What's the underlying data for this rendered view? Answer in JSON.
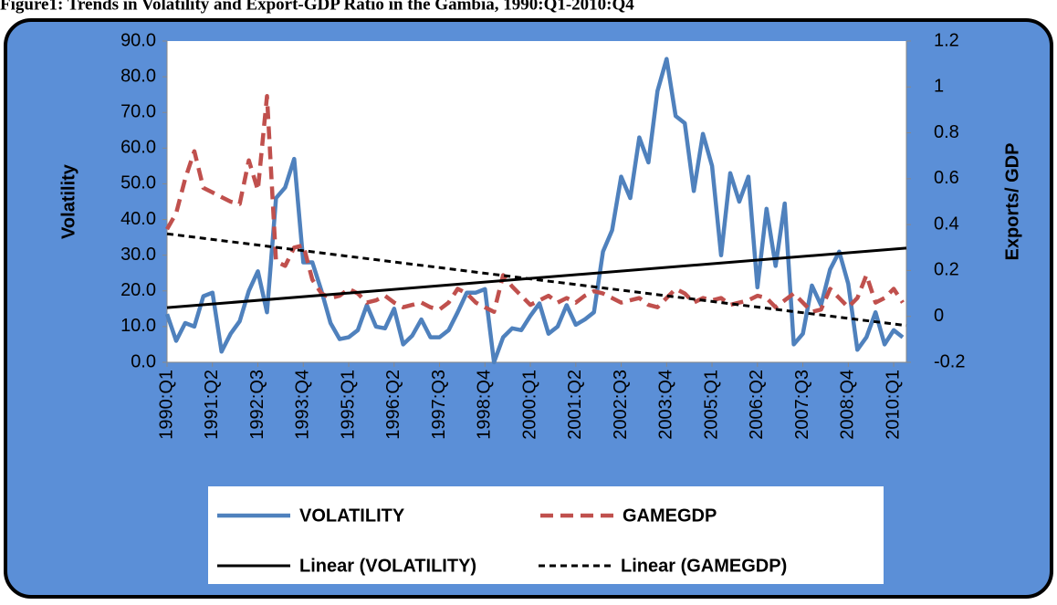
{
  "chart_data": {
    "type": "line",
    "title": "Figure1: Trends in Volatility and Export-GDP Ratio in the Gambia, 1990:Q1-2010:Q4",
    "y_label": "Volatility",
    "y2_label": "Exports/ GDP",
    "categories": [
      "1990:Q1",
      null,
      null,
      null,
      null,
      "1991:Q2",
      null,
      null,
      null,
      null,
      "1992:Q3",
      null,
      null,
      null,
      null,
      "1993:Q4",
      null,
      null,
      null,
      null,
      "1995:Q1",
      null,
      null,
      null,
      null,
      "1996:Q2",
      null,
      null,
      null,
      null,
      "1997:Q3",
      null,
      null,
      null,
      null,
      "1998:Q4",
      null,
      null,
      null,
      null,
      "2000:Q1",
      null,
      null,
      null,
      null,
      "2001:Q2",
      null,
      null,
      null,
      null,
      "2002:Q3",
      null,
      null,
      null,
      null,
      "2003:Q4",
      null,
      null,
      null,
      null,
      "2005:Q1",
      null,
      null,
      null,
      null,
      "2006:Q2",
      null,
      null,
      null,
      null,
      "2007:Q3",
      null,
      null,
      null,
      null,
      "2008:Q4",
      null,
      null,
      null,
      null,
      "2010:Q1",
      null
    ],
    "series": [
      {
        "name": "VOLATILITY",
        "color": "#4f81bd",
        "dash": false,
        "values": [
          13.5,
          6,
          11,
          10,
          18.5,
          19.5,
          3,
          8,
          11.5,
          20,
          25.5,
          14,
          46,
          49,
          57,
          28,
          28,
          20,
          11,
          6.5,
          7,
          9,
          16,
          10,
          9.5,
          15,
          5,
          7.5,
          12,
          7,
          7,
          9,
          14,
          19.5,
          19.5,
          20.5,
          0,
          7,
          9.5,
          9,
          13,
          16.5,
          8,
          10,
          16,
          10.5,
          12,
          14,
          31,
          37,
          52,
          46,
          63,
          56,
          76,
          85,
          69,
          67,
          48,
          64,
          55,
          30,
          53,
          45,
          52,
          21,
          43,
          27,
          44.5,
          5,
          8,
          21.5,
          16,
          26,
          31,
          22,
          3.5,
          7,
          14,
          5,
          9,
          7
        ]
      },
      {
        "name": "GAMEGDP",
        "color": "#c0504d",
        "dash": true,
        "axis": "y2",
        "values": [
          0.38,
          0.45,
          0.6,
          0.72,
          0.56,
          0.54,
          0.52,
          0.5,
          0.49,
          0.68,
          0.55,
          0.96,
          0.24,
          0.22,
          0.3,
          0.31,
          0.16,
          0.1,
          0.08,
          0.09,
          0.12,
          0.1,
          0.06,
          0.07,
          0.09,
          0.06,
          0.04,
          0.05,
          0.06,
          0.04,
          0.03,
          0.06,
          0.12,
          0.1,
          0.06,
          0.04,
          0.02,
          0.18,
          0.13,
          0.09,
          0.05,
          0.07,
          0.09,
          0.06,
          0.08,
          0.06,
          0.09,
          0.11,
          0.1,
          0.08,
          0.06,
          0.07,
          0.08,
          0.05,
          0.04,
          0.08,
          0.12,
          0.1,
          0.06,
          0.08,
          0.07,
          0.08,
          0.05,
          0.06,
          0.07,
          0.09,
          0.08,
          0.04,
          0.07,
          0.1,
          0.06,
          0.02,
          0.03,
          0.12,
          0.08,
          0.04,
          0.08,
          0.18,
          0.06,
          0.08,
          0.12,
          0.06
        ]
      }
    ],
    "trendlines": [
      {
        "name": "Linear (VOLATILITY)",
        "color": "#000000",
        "dash": false,
        "values": [
          15.3,
          32
        ]
      },
      {
        "name": "Linear (GAMEGDP)",
        "color": "#000000",
        "dash": true,
        "axis": "y2",
        "values": [
          0.36,
          -0.04
        ]
      }
    ],
    "ylim": [
      0,
      90
    ],
    "yticks": [
      {
        "value": 0,
        "label": "0.0"
      },
      {
        "value": 10,
        "label": "10.0"
      },
      {
        "value": 20,
        "label": "20.0"
      },
      {
        "value": 30,
        "label": "30.0"
      },
      {
        "value": 40,
        "label": "40.0"
      },
      {
        "value": 50,
        "label": "50.0"
      },
      {
        "value": 60,
        "label": "60.0"
      },
      {
        "value": 70,
        "label": "70.0"
      },
      {
        "value": 80,
        "label": "80.0"
      },
      {
        "value": 90,
        "label": "90.0"
      }
    ],
    "y2lim": [
      -0.2,
      1.2
    ],
    "y2ticks": [
      -0.2,
      0,
      0.2,
      0.4,
      0.6,
      0.8,
      1,
      1.2
    ],
    "legend": "bottom"
  }
}
